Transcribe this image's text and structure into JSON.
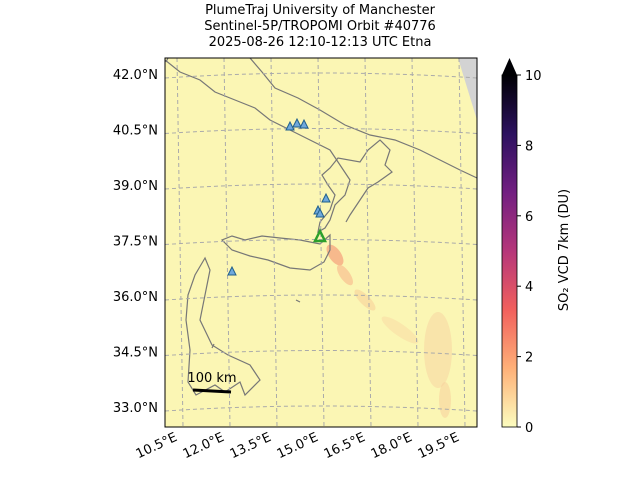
{
  "header": {
    "lines": [
      "PlumeTraj    University of Manchester",
      "Sentinel-5P/TROPOMI Orbit #40776",
      "2025-08-26   12:10-12:13 UTC   Etna"
    ]
  },
  "map": {
    "lat_labels": [
      "42.0°N",
      "40.5°N",
      "39.0°N",
      "37.5°N",
      "36.0°N",
      "34.5°N",
      "33.0°N"
    ],
    "lon_labels": [
      "10.5°E",
      "12.0°E",
      "13.5°E",
      "15.0°E",
      "16.5°E",
      "18.0°E",
      "19.5°E"
    ],
    "scale_bar": "100 km"
  },
  "colorbar": {
    "label": "SO₂ VCD 7km (DU)",
    "lim": [
      0,
      10
    ],
    "ticks": [
      0,
      2,
      4,
      6,
      8,
      10
    ],
    "colors": [
      "#fcfdbf",
      "#feb078",
      "#f1605d",
      "#b5367a",
      "#721f81",
      "#2c115f",
      "#000004"
    ]
  }
}
